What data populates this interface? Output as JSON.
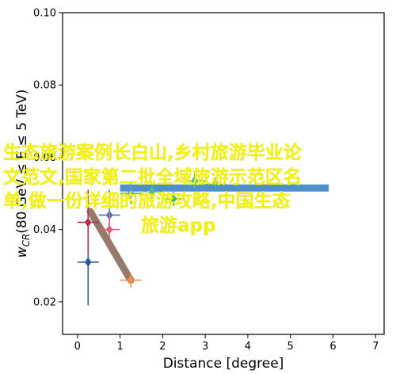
{
  "chart_data": {
    "type": "scatter",
    "xlabel": "Distance [degree]",
    "ylabel_main": "w",
    "ylabel_sub": "CR",
    "ylabel_rest": "(80 GeV ≤ E ≤ 5 TeV)",
    "xlim": [
      -0.35,
      7.2
    ],
    "ylim": [
      0.011,
      0.1
    ],
    "xticks": [
      "0",
      "1",
      "2",
      "3",
      "4",
      "5",
      "6",
      "7"
    ],
    "xtick_values": [
      0,
      1,
      2,
      3,
      4,
      5,
      6,
      7
    ],
    "yticks": [
      "0.02",
      "0.04",
      "0.06",
      "0.08",
      "0.10"
    ],
    "ytick_values": [
      0.02,
      0.04,
      0.06,
      0.08,
      0.1
    ],
    "series": [
      {
        "color": "#2b5c9e",
        "marker": "diamond",
        "points": [
          {
            "x": 0.25,
            "y": 0.031,
            "xerr": 0.25,
            "yerr": 0.012
          }
        ]
      },
      {
        "color": "#b22f4f",
        "marker": "diamond",
        "points": [
          {
            "x": 0.25,
            "y": 0.042,
            "xerr": 0.25,
            "yerr": 0.009
          }
        ]
      },
      {
        "color": "#3b78b8",
        "marker": "diamond",
        "points": [
          {
            "x": 0.75,
            "y": 0.044,
            "xerr": 0.25,
            "yerr": 0.007
          }
        ]
      },
      {
        "color": "#e0607a",
        "marker": "diamond",
        "points": [
          {
            "x": 0.75,
            "y": 0.04,
            "xerr": 0.25,
            "yerr": 0.005
          }
        ]
      },
      {
        "color": "#f09050",
        "marker": "diamond",
        "points": [
          {
            "x": 1.25,
            "y": 0.026,
            "xerr": 0.25,
            "yerr": 0.002
          }
        ]
      },
      {
        "color": "#5aa0c8",
        "marker": "diamond",
        "points": [
          {
            "x": 1.25,
            "y": 0.05,
            "xerr": 0.25,
            "yerr": 0.003
          }
        ]
      },
      {
        "color": "#4dbb8a",
        "marker": "diamond",
        "points": [
          {
            "x": 1.75,
            "y": 0.0505,
            "xerr": 0.25,
            "yerr": 0.002
          }
        ]
      },
      {
        "color": "#3cb371",
        "marker": "diamond",
        "points": [
          {
            "x": 2.25,
            "y": 0.0485,
            "xerr": 0.25,
            "yerr": 0.002
          }
        ]
      },
      {
        "color": "#45b7a0",
        "marker": "diamond",
        "points": [
          {
            "x": 2.75,
            "y": 0.0535,
            "xerr": 0.25,
            "yerr": 0.002
          }
        ]
      },
      {
        "color": "#3aa8b0",
        "marker": "diamond",
        "points": [
          {
            "x": 3.25,
            "y": 0.0525,
            "xerr": 0.25,
            "yerr": 0.002
          }
        ]
      }
    ],
    "bands": [
      {
        "color": "#3d85c6",
        "x": [
          1.0,
          5.9
        ],
        "y": 0.0515
      },
      {
        "color": "#8b6f5c",
        "x": [
          0.3,
          1.25
        ],
        "y": [
          0.045,
          0.026
        ]
      }
    ]
  },
  "overlay": {
    "lines": [
      "生态旅游案例长白山,乡村旅游毕业论",
      "文范文,国家第二批全域旅游示范区名",
      "单,做一份详细的旅游攻略,中国生态",
      "旅游app"
    ]
  }
}
